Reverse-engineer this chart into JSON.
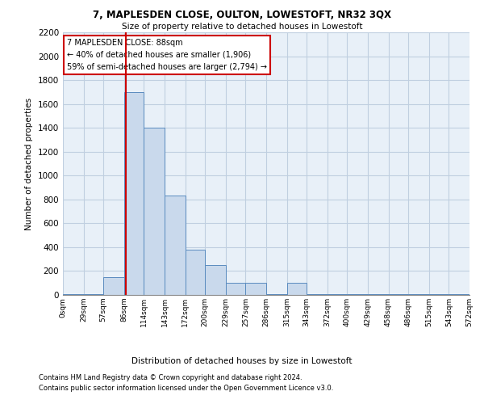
{
  "title1": "7, MAPLESDEN CLOSE, OULTON, LOWESTOFT, NR32 3QX",
  "title2": "Size of property relative to detached houses in Lowestoft",
  "xlabel": "Distribution of detached houses by size in Lowestoft",
  "ylabel": "Number of detached properties",
  "bin_edges": [
    0,
    29,
    57,
    86,
    114,
    143,
    172,
    200,
    229,
    257,
    286,
    315,
    343,
    372,
    400,
    429,
    458,
    486,
    515,
    543,
    572
  ],
  "bar_heights": [
    5,
    5,
    150,
    1700,
    1400,
    830,
    380,
    250,
    100,
    100,
    5,
    100,
    5,
    5,
    5,
    5,
    5,
    5,
    5,
    5
  ],
  "bar_color": "#c9d9ec",
  "bar_edge_color": "#5a8bbf",
  "grid_color": "#c0cfe0",
  "bg_color": "#e8f0f8",
  "vline_x": 88,
  "vline_color": "#cc0000",
  "annotation_text": "7 MAPLESDEN CLOSE: 88sqm\n← 40% of detached houses are smaller (1,906)\n59% of semi-detached houses are larger (2,794) →",
  "annotation_box_color": "#cc0000",
  "footnote1": "Contains HM Land Registry data © Crown copyright and database right 2024.",
  "footnote2": "Contains public sector information licensed under the Open Government Licence v3.0.",
  "ylim": [
    0,
    2200
  ],
  "yticks": [
    0,
    200,
    400,
    600,
    800,
    1000,
    1200,
    1400,
    1600,
    1800,
    2000,
    2200
  ]
}
